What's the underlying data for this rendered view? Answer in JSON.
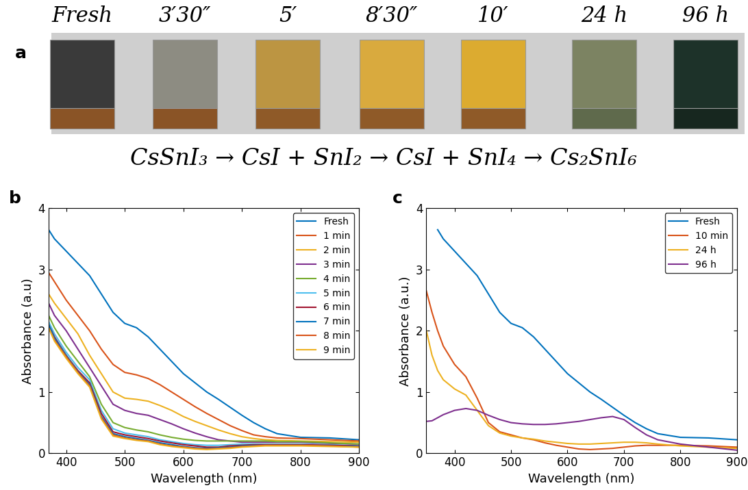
{
  "photo_strip": {
    "panel": "a",
    "labels": [
      "Fresh",
      "3′30″",
      "5′",
      "8′30″",
      "10′",
      "24 h",
      "96 h"
    ],
    "equation": "CsSnI₃ → CsI + SnI₂ → CsI + SnI₄ → Cs₂SnI₆"
  },
  "chart_data": [
    {
      "type": "line",
      "title": "b",
      "xlabel": "Wavelength (nm)",
      "ylabel": "Absorbance (a.u)",
      "xlim": [
        370,
        900
      ],
      "ylim": [
        0,
        4
      ],
      "xticks": [
        400,
        500,
        600,
        700,
        800,
        900
      ],
      "yticks": [
        0,
        1,
        2,
        3,
        4
      ],
      "legend": "upper right",
      "x": [
        370,
        380,
        400,
        420,
        440,
        460,
        480,
        500,
        520,
        540,
        560,
        580,
        600,
        620,
        640,
        660,
        680,
        700,
        720,
        740,
        760,
        800,
        850,
        900
      ],
      "series": [
        {
          "name": "Fresh",
          "color": "#0072BD",
          "values": [
            3.65,
            3.5,
            3.3,
            3.1,
            2.9,
            2.6,
            2.3,
            2.12,
            2.05,
            1.9,
            1.7,
            1.5,
            1.3,
            1.15,
            1.0,
            0.88,
            0.75,
            0.62,
            0.5,
            0.4,
            0.32,
            0.26,
            0.25,
            0.22
          ]
        },
        {
          "name": "1 min",
          "color": "#D95319",
          "values": [
            2.95,
            2.8,
            2.5,
            2.25,
            2.0,
            1.7,
            1.45,
            1.32,
            1.28,
            1.22,
            1.12,
            1.0,
            0.88,
            0.76,
            0.65,
            0.55,
            0.45,
            0.37,
            0.3,
            0.27,
            0.25,
            0.24,
            0.22,
            0.2
          ]
        },
        {
          "name": "2 min",
          "color": "#EDB120",
          "values": [
            2.6,
            2.45,
            2.2,
            1.95,
            1.6,
            1.3,
            1.0,
            0.9,
            0.88,
            0.85,
            0.78,
            0.7,
            0.6,
            0.52,
            0.45,
            0.38,
            0.32,
            0.27,
            0.24,
            0.22,
            0.21,
            0.2,
            0.19,
            0.18
          ]
        },
        {
          "name": "3 min",
          "color": "#7E2F8E",
          "values": [
            2.45,
            2.25,
            2.0,
            1.7,
            1.4,
            1.1,
            0.8,
            0.7,
            0.65,
            0.62,
            0.55,
            0.48,
            0.4,
            0.33,
            0.27,
            0.22,
            0.2,
            0.18,
            0.18,
            0.18,
            0.18,
            0.18,
            0.16,
            0.15
          ]
        },
        {
          "name": "4 min",
          "color": "#77AC30",
          "values": [
            2.25,
            2.05,
            1.75,
            1.5,
            1.25,
            0.8,
            0.5,
            0.42,
            0.38,
            0.35,
            0.3,
            0.26,
            0.23,
            0.21,
            0.2,
            0.2,
            0.2,
            0.2,
            0.2,
            0.2,
            0.19,
            0.19,
            0.17,
            0.15
          ]
        },
        {
          "name": "5 min",
          "color": "#4DBEEE",
          "values": [
            2.15,
            1.95,
            1.65,
            1.4,
            1.2,
            0.7,
            0.4,
            0.33,
            0.3,
            0.27,
            0.22,
            0.19,
            0.16,
            0.14,
            0.13,
            0.13,
            0.14,
            0.15,
            0.15,
            0.15,
            0.15,
            0.15,
            0.14,
            0.12
          ]
        },
        {
          "name": "6 min",
          "color": "#A2142F",
          "values": [
            2.1,
            1.9,
            1.6,
            1.35,
            1.15,
            0.65,
            0.35,
            0.3,
            0.27,
            0.24,
            0.2,
            0.17,
            0.14,
            0.12,
            0.1,
            0.1,
            0.12,
            0.13,
            0.14,
            0.14,
            0.14,
            0.14,
            0.13,
            0.12
          ]
        },
        {
          "name": "7 min",
          "color": "#0072BD",
          "values": [
            2.1,
            1.88,
            1.6,
            1.33,
            1.12,
            0.6,
            0.32,
            0.27,
            0.24,
            0.21,
            0.17,
            0.14,
            0.11,
            0.09,
            0.08,
            0.09,
            0.1,
            0.12,
            0.13,
            0.13,
            0.13,
            0.13,
            0.12,
            0.11
          ]
        },
        {
          "name": "8 min",
          "color": "#D95319",
          "values": [
            2.05,
            1.85,
            1.58,
            1.32,
            1.1,
            0.58,
            0.3,
            0.25,
            0.22,
            0.2,
            0.15,
            0.12,
            0.1,
            0.08,
            0.07,
            0.08,
            0.09,
            0.11,
            0.12,
            0.13,
            0.13,
            0.13,
            0.12,
            0.1
          ]
        },
        {
          "name": "9 min",
          "color": "#EDB120",
          "values": [
            2.05,
            1.83,
            1.55,
            1.3,
            1.08,
            0.56,
            0.28,
            0.24,
            0.21,
            0.19,
            0.14,
            0.11,
            0.09,
            0.07,
            0.06,
            0.07,
            0.08,
            0.1,
            0.11,
            0.12,
            0.12,
            0.12,
            0.11,
            0.1
          ]
        }
      ]
    },
    {
      "type": "line",
      "title": "c",
      "xlabel": "Wavelength (nm)",
      "ylabel": "Absorbance (a.u.)",
      "xlim": [
        350,
        900
      ],
      "ylim": [
        0,
        4
      ],
      "xticks": [
        400,
        500,
        600,
        700,
        800,
        900
      ],
      "yticks": [
        0,
        1,
        2,
        3,
        4
      ],
      "legend": "upper right",
      "x": [
        350,
        360,
        370,
        380,
        400,
        420,
        440,
        460,
        480,
        500,
        520,
        540,
        560,
        580,
        600,
        620,
        640,
        660,
        680,
        700,
        720,
        740,
        760,
        800,
        850,
        900
      ],
      "series": [
        {
          "name": "Fresh",
          "color": "#0072BD",
          "values": [
            null,
            null,
            3.65,
            3.5,
            3.3,
            3.1,
            2.9,
            2.6,
            2.3,
            2.12,
            2.05,
            1.9,
            1.7,
            1.5,
            1.3,
            1.15,
            1.0,
            0.88,
            0.75,
            0.62,
            0.5,
            0.4,
            0.32,
            0.26,
            0.25,
            0.22
          ]
        },
        {
          "name": "10 min",
          "color": "#D95319",
          "values": [
            2.65,
            2.3,
            2.0,
            1.75,
            1.45,
            1.25,
            0.9,
            0.5,
            0.35,
            0.3,
            0.25,
            0.22,
            0.17,
            0.13,
            0.1,
            0.07,
            0.06,
            0.07,
            0.08,
            0.1,
            0.12,
            0.13,
            0.13,
            0.13,
            0.12,
            0.1
          ]
        },
        {
          "name": "24 h",
          "color": "#EDB120",
          "values": [
            2.0,
            1.6,
            1.35,
            1.2,
            1.05,
            0.95,
            0.7,
            0.45,
            0.33,
            0.28,
            0.25,
            0.23,
            0.2,
            0.18,
            0.16,
            0.15,
            0.15,
            0.16,
            0.17,
            0.18,
            0.18,
            0.17,
            0.15,
            0.12,
            0.1,
            0.08
          ]
        },
        {
          "name": "96 h",
          "color": "#7E2F8E",
          "values": [
            0.52,
            0.53,
            0.58,
            0.63,
            0.7,
            0.73,
            0.7,
            0.62,
            0.55,
            0.5,
            0.48,
            0.47,
            0.47,
            0.48,
            0.5,
            0.52,
            0.55,
            0.58,
            0.6,
            0.55,
            0.42,
            0.3,
            0.22,
            0.15,
            0.1,
            0.05
          ]
        }
      ]
    }
  ]
}
